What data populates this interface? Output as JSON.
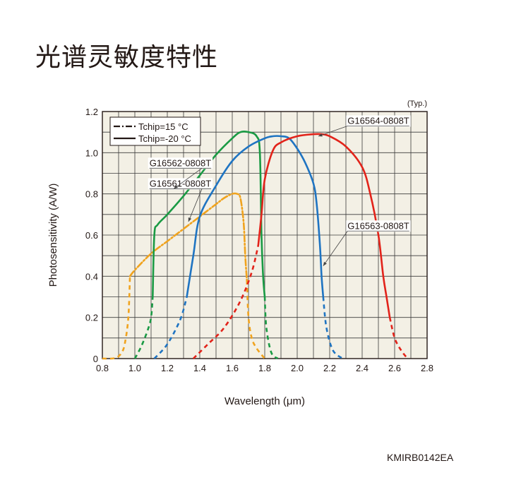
{
  "page": {
    "title": "光谱灵敏度特性",
    "figure_code": "KMIRB0142EA"
  },
  "chart_data": {
    "type": "line",
    "title": "光谱灵敏度特性",
    "typ_note": "(Typ.)",
    "xlabel": "Wavelength (μm)",
    "ylabel": "Photosensitivity (A/W)",
    "xlim": [
      0.8,
      2.8
    ],
    "ylim": [
      0,
      1.2
    ],
    "x_ticks": [
      0.8,
      1.0,
      1.2,
      1.4,
      1.6,
      1.8,
      2.0,
      2.2,
      2.4,
      2.6,
      2.8
    ],
    "y_ticks": [
      0,
      0.2,
      0.4,
      0.6,
      0.8,
      1.0,
      1.2
    ],
    "x_tick_labels": [
      "0.8",
      "1.0",
      "1.2",
      "1.4",
      "1.6",
      "1.8",
      "2.0",
      "2.2",
      "2.4",
      "2.6",
      "2.8"
    ],
    "y_tick_labels": [
      "0",
      "0.2",
      "0.4",
      "0.6",
      "0.8",
      "1.0",
      "1.2"
    ],
    "grid": true,
    "legend": {
      "placement": "top-left",
      "entries": [
        {
          "label": "Tchip=15 °C",
          "style": "dash-dot"
        },
        {
          "label": "Tchip=-20 °C",
          "style": "solid"
        }
      ]
    },
    "colors": {
      "G16561-0808T": "#f0a31e",
      "G16562-0808T": "#1a9a44",
      "G16563-0808T": "#1f74c2",
      "G16564-0808T": "#e2231a",
      "plot_background": "#f3f0e5"
    },
    "series": [
      {
        "name": "G16561-0808T",
        "line_style": "dash-dot",
        "solid_x": [
          0.97,
          1.0,
          1.1,
          1.2,
          1.3,
          1.4,
          1.5,
          1.55,
          1.6,
          1.63,
          1.65,
          1.67,
          1.68,
          1.69
        ],
        "solid_y": [
          0.4,
          0.43,
          0.51,
          0.57,
          0.63,
          0.69,
          0.75,
          0.78,
          0.8,
          0.8,
          0.78,
          0.66,
          0.5,
          0.38
        ],
        "tail_x": [
          0.8,
          0.88,
          0.92,
          0.94,
          0.96,
          0.97,
          1.69,
          1.7,
          1.72,
          1.75,
          1.8
        ],
        "tail_y": [
          0.0,
          0.003,
          0.03,
          0.08,
          0.2,
          0.4,
          0.38,
          0.2,
          0.1,
          0.05,
          0.0
        ]
      },
      {
        "name": "G16562-0808T",
        "line_style": "solid",
        "solid_x": [
          1.11,
          1.12,
          1.14,
          1.2,
          1.3,
          1.4,
          1.5,
          1.6,
          1.65,
          1.7,
          1.75,
          1.77,
          1.78,
          1.79,
          1.8
        ],
        "solid_y": [
          0.3,
          0.6,
          0.65,
          0.7,
          0.79,
          0.89,
          0.99,
          1.07,
          1.1,
          1.1,
          1.08,
          1.0,
          0.6,
          0.4,
          0.3
        ],
        "tail_x": [
          1.0,
          1.04,
          1.08,
          1.1,
          1.11,
          1.8,
          1.81,
          1.84,
          1.88
        ],
        "tail_y": [
          0.0,
          0.06,
          0.14,
          0.2,
          0.3,
          0.3,
          0.15,
          0.03,
          0.0
        ]
      },
      {
        "name": "G16563-0808T",
        "line_style": "solid",
        "solid_x": [
          1.32,
          1.36,
          1.4,
          1.5,
          1.6,
          1.7,
          1.8,
          1.85,
          1.9,
          1.95,
          2.0,
          2.05,
          2.1,
          2.12,
          2.14,
          2.15,
          2.16
        ],
        "solid_y": [
          0.3,
          0.5,
          0.69,
          0.84,
          0.96,
          1.03,
          1.07,
          1.08,
          1.08,
          1.07,
          1.02,
          0.95,
          0.85,
          0.75,
          0.55,
          0.4,
          0.3
        ],
        "tail_x": [
          1.12,
          1.2,
          1.28,
          1.32,
          2.16,
          2.18,
          2.22,
          2.28
        ],
        "tail_y": [
          0.0,
          0.07,
          0.19,
          0.3,
          0.3,
          0.15,
          0.04,
          0.0
        ]
      },
      {
        "name": "G16564-0808T",
        "line_style": "solid",
        "solid_x": [
          1.76,
          1.78,
          1.8,
          1.85,
          1.9,
          2.0,
          2.1,
          2.15,
          2.2,
          2.3,
          2.4,
          2.45,
          2.5,
          2.53,
          2.55,
          2.57
        ],
        "solid_y": [
          0.55,
          0.7,
          0.87,
          1.01,
          1.05,
          1.08,
          1.09,
          1.09,
          1.08,
          1.03,
          0.93,
          0.8,
          0.6,
          0.4,
          0.3,
          0.2
        ],
        "tail_x": [
          1.36,
          1.45,
          1.55,
          1.65,
          1.72,
          1.76,
          2.57,
          2.6,
          2.64,
          2.68
        ],
        "tail_y": [
          0.0,
          0.07,
          0.15,
          0.28,
          0.42,
          0.55,
          0.2,
          0.1,
          0.04,
          0.0
        ]
      }
    ],
    "annotations": [
      {
        "text": "G16561-0808T",
        "series": "G16561-0808T",
        "label_x": 1.09,
        "label_y": 0.835,
        "point_x": 1.33,
        "point_y": 0.665
      },
      {
        "text": "G16562-0808T",
        "series": "G16562-0808T",
        "label_x": 1.09,
        "label_y": 0.935,
        "point_x": 1.24,
        "point_y": 0.825
      },
      {
        "text": "G16563-0808T",
        "series": "G16563-0808T",
        "label_x": 2.31,
        "label_y": 0.63,
        "point_x": 2.16,
        "point_y": 0.45
      },
      {
        "text": "G16564-0808T",
        "series": "G16564-0808T",
        "label_x": 2.31,
        "label_y": 1.14,
        "point_x": 2.13,
        "point_y": 1.08
      }
    ]
  }
}
